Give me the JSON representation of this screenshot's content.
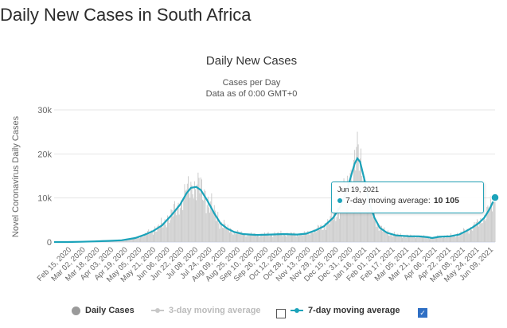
{
  "page": {
    "title": "Daily New Cases in South Africa"
  },
  "chart_data": {
    "type": "line",
    "title": "Daily New Cases",
    "subtitle_1": "Cases per Day",
    "subtitle_2": "Data as of 0:00 GMT+0",
    "ylabel": "Novel Coronavirus Daily Cases",
    "xlabel": "",
    "ylim": [
      0,
      30000
    ],
    "yticks": [
      {
        "v": 0,
        "label": "0"
      },
      {
        "v": 10000,
        "label": "10k"
      },
      {
        "v": 20000,
        "label": "20k"
      },
      {
        "v": 30000,
        "label": "30k"
      }
    ],
    "x_tick_labels": [
      "Feb 15, 2020",
      "Mar 02, 2020",
      "Mar 18, 2020",
      "Apr 03, 2020",
      "Apr 19, 2020",
      "May 05, 2020",
      "May 21, 2020",
      "Jun 06, 2020",
      "Jun 22, 2020",
      "Jul 08, 2020",
      "Jul 24, 2020",
      "Aug 09, 2020",
      "Aug 25, 2020",
      "Sep 10, 2020",
      "Sep 26, 2020",
      "Oct 12, 2020",
      "Oct 28, 2020",
      "Nov 13, 2020",
      "Nov 29, 2020",
      "Dec 15, 2020",
      "Dec 31, 2020",
      "Jan 16, 2021",
      "Feb 01, 2021",
      "Feb 17, 2021",
      "Mar 05, 2021",
      "Mar 21, 2021",
      "Apr 06, 2021",
      "Apr 22, 2021",
      "May 08, 2021",
      "May 24, 2021",
      "Jun 09, 2021"
    ],
    "moving_avg_7day": [
      [
        0,
        0
      ],
      [
        15,
        0
      ],
      [
        30,
        50
      ],
      [
        45,
        150
      ],
      [
        60,
        250
      ],
      [
        75,
        400
      ],
      [
        90,
        900
      ],
      [
        100,
        1600
      ],
      [
        110,
        2500
      ],
      [
        120,
        3800
      ],
      [
        130,
        6000
      ],
      [
        140,
        8500
      ],
      [
        147,
        11000
      ],
      [
        152,
        12300
      ],
      [
        158,
        12500
      ],
      [
        163,
        11800
      ],
      [
        170,
        9500
      ],
      [
        178,
        6500
      ],
      [
        185,
        4200
      ],
      [
        192,
        3100
      ],
      [
        200,
        2300
      ],
      [
        210,
        1800
      ],
      [
        225,
        1600
      ],
      [
        240,
        1700
      ],
      [
        255,
        1800
      ],
      [
        270,
        1700
      ],
      [
        280,
        1900
      ],
      [
        290,
        2600
      ],
      [
        300,
        3600
      ],
      [
        310,
        5500
      ],
      [
        318,
        8000
      ],
      [
        325,
        11500
      ],
      [
        330,
        15000
      ],
      [
        334,
        17800
      ],
      [
        337,
        19000
      ],
      [
        340,
        18200
      ],
      [
        345,
        14000
      ],
      [
        350,
        9000
      ],
      [
        356,
        5500
      ],
      [
        362,
        3200
      ],
      [
        370,
        2100
      ],
      [
        380,
        1500
      ],
      [
        395,
        1300
      ],
      [
        405,
        1300
      ],
      [
        415,
        1100
      ],
      [
        420,
        900
      ],
      [
        428,
        1200
      ],
      [
        440,
        1300
      ],
      [
        450,
        1700
      ],
      [
        458,
        2500
      ],
      [
        465,
        3300
      ],
      [
        472,
        4300
      ],
      [
        478,
        5500
      ],
      [
        484,
        7500
      ],
      [
        490,
        10105
      ]
    ],
    "daily_cases_bar_color": "#c8c8c8",
    "legend": [
      {
        "name": "Daily Cases",
        "color": "#9a9a9a",
        "enabled": true
      },
      {
        "name": "3-day moving average",
        "color": "#c8c8c8",
        "enabled": false
      },
      {
        "name": "7-day moving average",
        "color": "#1ba3ba",
        "enabled": true
      }
    ],
    "tooltip": {
      "date": "Jun 19, 2021",
      "series": "7-day moving average:",
      "value": "10 105"
    },
    "colors": {
      "line": "#1ba3ba",
      "grid": "#e6e6e6"
    }
  }
}
